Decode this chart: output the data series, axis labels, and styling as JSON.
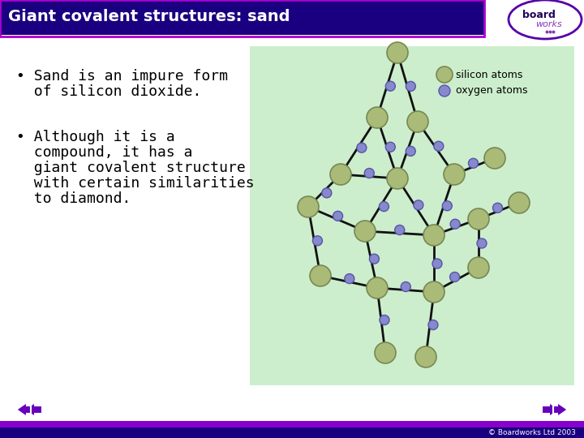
{
  "title": "Giant covalent structures: sand",
  "title_bg": "#1A0080",
  "title_fg": "#FFFFFF",
  "title_border": "#AA00CC",
  "slide_bg": "#FFFFFF",
  "bullet1_line1": "• Sand is an impure form",
  "bullet1_line2": "  of silicon dioxide.",
  "bullet2_line1": "• Although it is a",
  "bullet2_line2": "  compound, it has a",
  "bullet2_line3": "  giant covalent structure",
  "bullet2_line4": "  with certain similarities",
  "bullet2_line5": "  to diamond.",
  "text_color": "#000000",
  "diagram_bg": "#CCEECC",
  "silicon_color": "#AABB77",
  "silicon_edge": "#778855",
  "oxygen_color": "#8888CC",
  "oxygen_edge": "#5555AA",
  "legend_silicon": "silicon atoms",
  "legend_oxygen": "oxygen atoms",
  "bond_color": "#111111",
  "footer_text": "© Boardworks Ltd 2003",
  "footer_bg": "#1A0080",
  "footer_bar": "#8800CC",
  "nav_color": "#6600BB",
  "boardworks_color": "#5500AA",
  "board_text": "#220055",
  "works_text": "#8833BB"
}
